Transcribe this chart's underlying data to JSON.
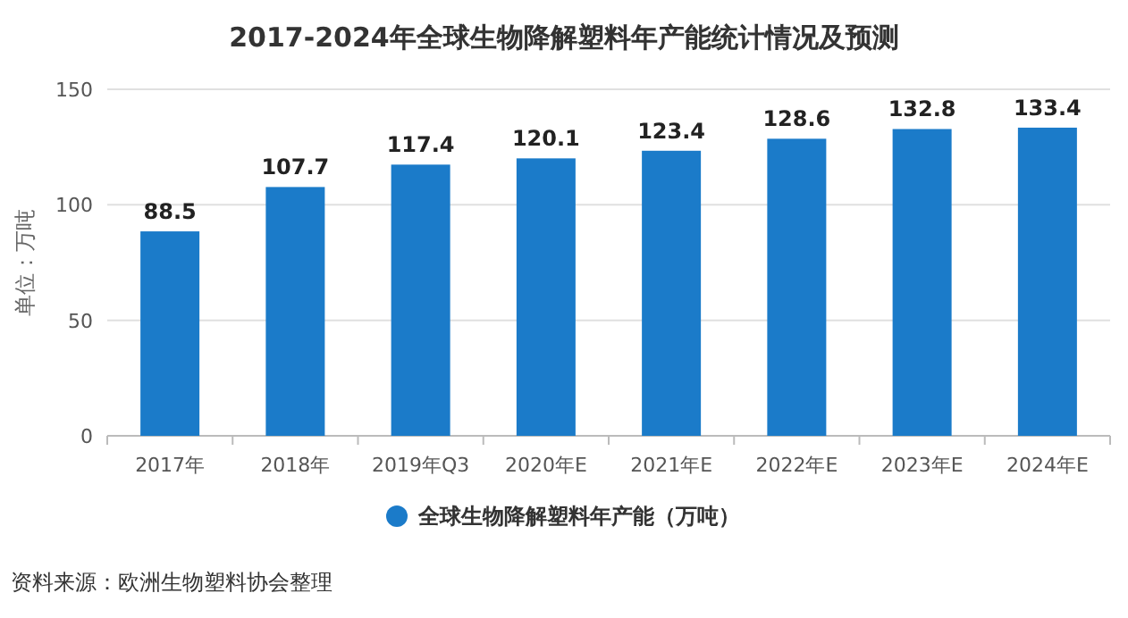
{
  "chart_data": {
    "type": "bar",
    "title": "2017-2024年全球生物降解塑料年产能统计情况及预测",
    "ylabel": "单位：万吨",
    "categories": [
      "2017年",
      "2018年",
      "2019年Q3",
      "2020年E",
      "2021年E",
      "2022年E",
      "2023年E",
      "2024年E"
    ],
    "series": [
      {
        "name": "全球生物降解塑料年产能（万吨）",
        "color": "#1b7bc9",
        "values": [
          88.5,
          107.7,
          117.4,
          120.1,
          123.4,
          128.6,
          132.8,
          133.4
        ]
      }
    ],
    "ylim": [
      0,
      150
    ],
    "yticks": [
      0,
      50,
      100,
      150
    ],
    "grid": "y",
    "legend": "bottom",
    "data_labels": true,
    "annotations": [
      "资料来源：欧洲生物塑料协会整理"
    ]
  }
}
